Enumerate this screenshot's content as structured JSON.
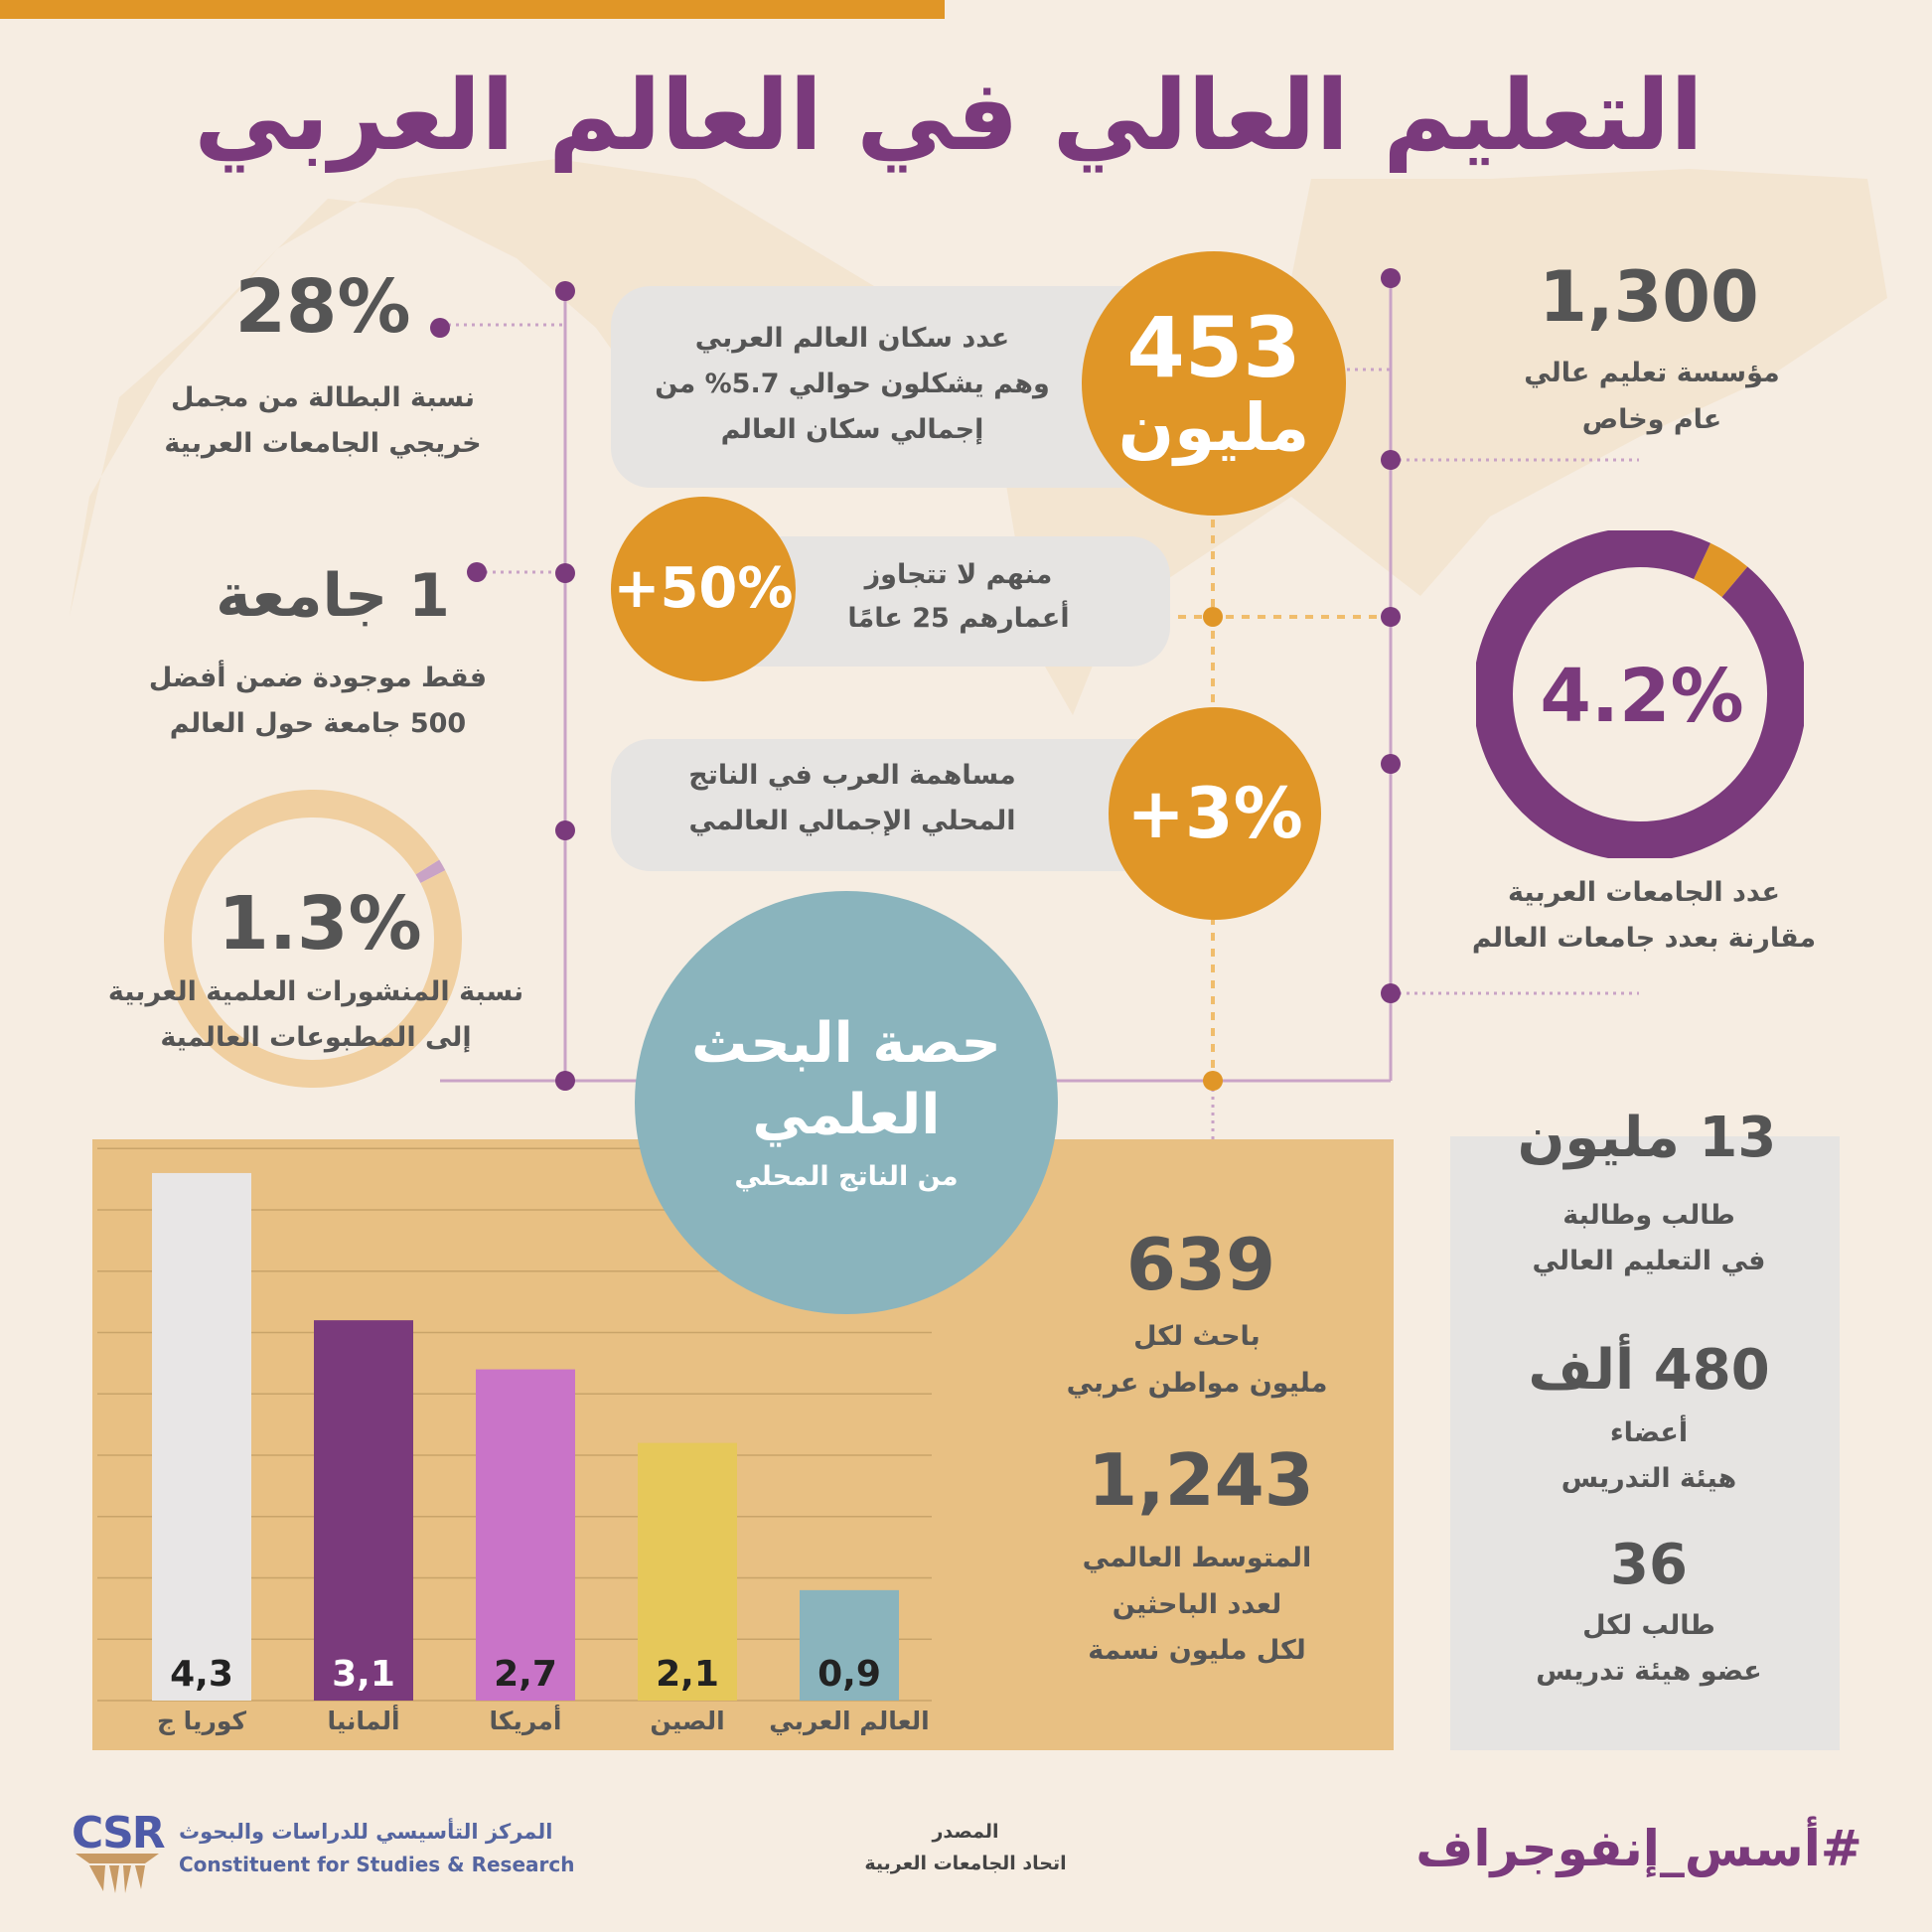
{
  "title": "التعليم العالي في العالم العربي",
  "left": {
    "unemployment": {
      "value": "28%",
      "line1": "نسبة البطالة من مجمل",
      "line2": "خريجي الجامعات العربية"
    },
    "top500": {
      "value": "1 جامعة",
      "line1": "فقط موجودة ضمن أفضل",
      "line2": "500 جامعة حول العالم"
    },
    "publications": {
      "value": "1.3%",
      "percent": 1.3,
      "line1": "نسبة المنشورات العلمية العربية",
      "line2": "إلى المطبوعات العالمية"
    }
  },
  "center": {
    "population": {
      "value": "453",
      "unit": "مليون",
      "line1": "عدد سكان العالم العربي",
      "line2": "وهم يشكلون حوالي 5.7% من",
      "line3": "إجمالي سكان العالم"
    },
    "youth": {
      "value": "+50%",
      "line1": "منهم لا تتجاوز",
      "line2": "أعمارهم 25 عامًا"
    },
    "gdp": {
      "value": "+3%",
      "line1": "مساهمة العرب في الناتج",
      "line2": "المحلي الإجمالي العالمي"
    },
    "research": {
      "line1": "حصة البحث",
      "line2": "العلمي",
      "line3": "من الناتج المحلي"
    }
  },
  "right": {
    "institutions": {
      "value": "1,300",
      "line1": "مؤسسة تعليم عالي",
      "line2": "عام وخاص"
    },
    "universities": {
      "value": "4.2%",
      "percent": 4.2,
      "line1": "عدد الجامعات العربية",
      "line2": "مقارنة بعدد جامعات العالم"
    }
  },
  "researchers": {
    "arab": {
      "value": "639",
      "line1": "باحث لكل",
      "line2": "مليون مواطن عربي"
    },
    "global": {
      "value": "1,243",
      "line1": "المتوسط العالمي",
      "line2": "لعدد الباحثين",
      "line3": "لكل مليون نسمة"
    }
  },
  "side_panel": {
    "students": {
      "value": "13 مليون",
      "line1": "طالب وطالبة",
      "line2": "في التعليم العالي"
    },
    "faculty": {
      "value": "480 ألف",
      "line1": "أعضاء",
      "line2": "هيئة التدريس"
    },
    "ratio": {
      "value": "36",
      "line1": "طالب لكل",
      "line2": "عضو هيئة تدريس"
    }
  },
  "chart_data": [
    {
      "type": "bar",
      "title": "",
      "xlabel": "",
      "ylabel": "",
      "ylim": [
        0,
        4.5
      ],
      "grid": true,
      "categories": [
        "كوريا ج",
        "ألمانيا",
        "أمريكا",
        "الصين",
        "العالم العربي"
      ],
      "values": [
        4.3,
        3.1,
        2.7,
        2.1,
        0.9
      ],
      "value_labels": [
        "4,3",
        "3,1",
        "2,7",
        "2,1",
        "0,9"
      ],
      "colors": [
        "#e8e6e6",
        "#7a3a7c",
        "#c974c8",
        "#e6c85a",
        "#8ab4bd"
      ],
      "label_colors": [
        "#222",
        "#fff",
        "#222",
        "#222",
        "#222"
      ]
    },
    {
      "type": "pie",
      "title": "",
      "values": [
        1.3,
        98.7
      ],
      "colors": [
        "#c9a3c6",
        "#f0cfa0"
      ]
    },
    {
      "type": "pie",
      "title": "",
      "values": [
        4.2,
        95.8
      ],
      "colors": [
        "#e09627",
        "#7a3a7c"
      ]
    }
  ],
  "footer": {
    "hashtag": "#أسس_إنفوجراف",
    "source_label": "المصدر",
    "source": "اتحاد الجامعات العربية",
    "logo_text": "CSR",
    "org_ar": "المركز التأسيسي للدراسات والبحوث",
    "org_en": "Constituent for Studies & Research"
  },
  "colors": {
    "purple": "#7a3a7c",
    "orange": "#e09627",
    "teal": "#8ab4bd",
    "panel": "#e8c083",
    "gray": "#e6e4e2",
    "background": "#f6ede2"
  }
}
